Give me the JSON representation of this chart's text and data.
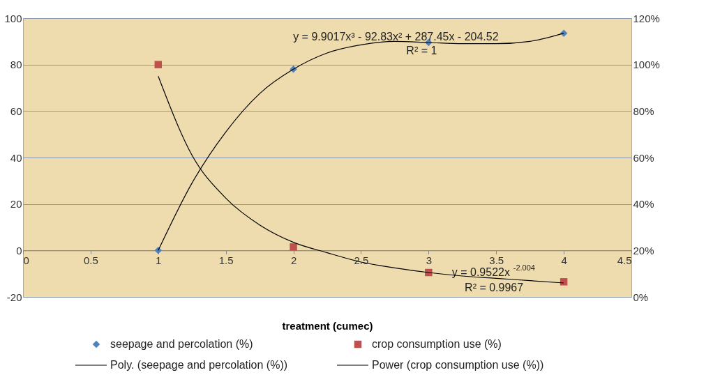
{
  "chart_data": {
    "type": "scatter",
    "xlabel": "treatment (cumec)",
    "xlim": [
      0,
      4.5
    ],
    "xticks": [
      0,
      0.5,
      1,
      1.5,
      2,
      2.5,
      3,
      3.5,
      4,
      4.5
    ],
    "ylim": [
      -20,
      100
    ],
    "yticks": [
      -20,
      0,
      20,
      40,
      60,
      80,
      100
    ],
    "y2lim": [
      0,
      120
    ],
    "y2ticks": [
      {
        "value": 0,
        "label": "0%"
      },
      {
        "value": 20,
        "label": "20%"
      },
      {
        "value": 40,
        "label": "40%"
      },
      {
        "value": 60,
        "label": "60%"
      },
      {
        "value": 80,
        "label": "80%"
      },
      {
        "value": 100,
        "label": "100%"
      },
      {
        "value": 120,
        "label": "120%"
      }
    ],
    "grid": "y",
    "legend": "bottom",
    "series": [
      {
        "name": "seepage and percolation (%)",
        "marker": "diamond",
        "color": "#4f81bd",
        "x": [
          1,
          2,
          3,
          4
        ],
        "values": [
          0,
          78,
          89.5,
          93.5
        ]
      },
      {
        "name": "crop consumption use (%)",
        "marker": "square",
        "color": "#c0504d",
        "axis": "y2",
        "x": [
          1,
          2,
          3,
          4
        ],
        "values": [
          100,
          21.5,
          10.5,
          6.5
        ]
      },
      {
        "name": "Poly. (seepage and percolation (%))",
        "type": "line",
        "color": "#000000",
        "x": [
          1,
          1.25,
          1.5,
          1.75,
          2,
          2.25,
          2.5,
          2.75,
          3,
          3.25,
          3.5,
          3.75,
          4
        ],
        "values": [
          0,
          29,
          51,
          67.5,
          78,
          85,
          88.5,
          90,
          89.5,
          89,
          89,
          90,
          93.5
        ]
      },
      {
        "name": "Power (crop consumption use (%))",
        "type": "line",
        "color": "#000000",
        "axis": "y2",
        "x": [
          1,
          1.25,
          1.5,
          1.75,
          2,
          2.25,
          2.5,
          2.75,
          3,
          3.25,
          3.5,
          3.75,
          4
        ],
        "values": [
          95,
          61,
          42.5,
          31,
          23.5,
          19,
          15,
          12.5,
          10.5,
          9,
          8,
          7,
          6
        ]
      }
    ],
    "annotations": [
      "y = 9.9017x³ - 92.83x² + 287.45x - 204.52",
      "R² = 1",
      "y = 0.9522x$^{-2.004}$",
      "R² = 0.9967"
    ]
  }
}
